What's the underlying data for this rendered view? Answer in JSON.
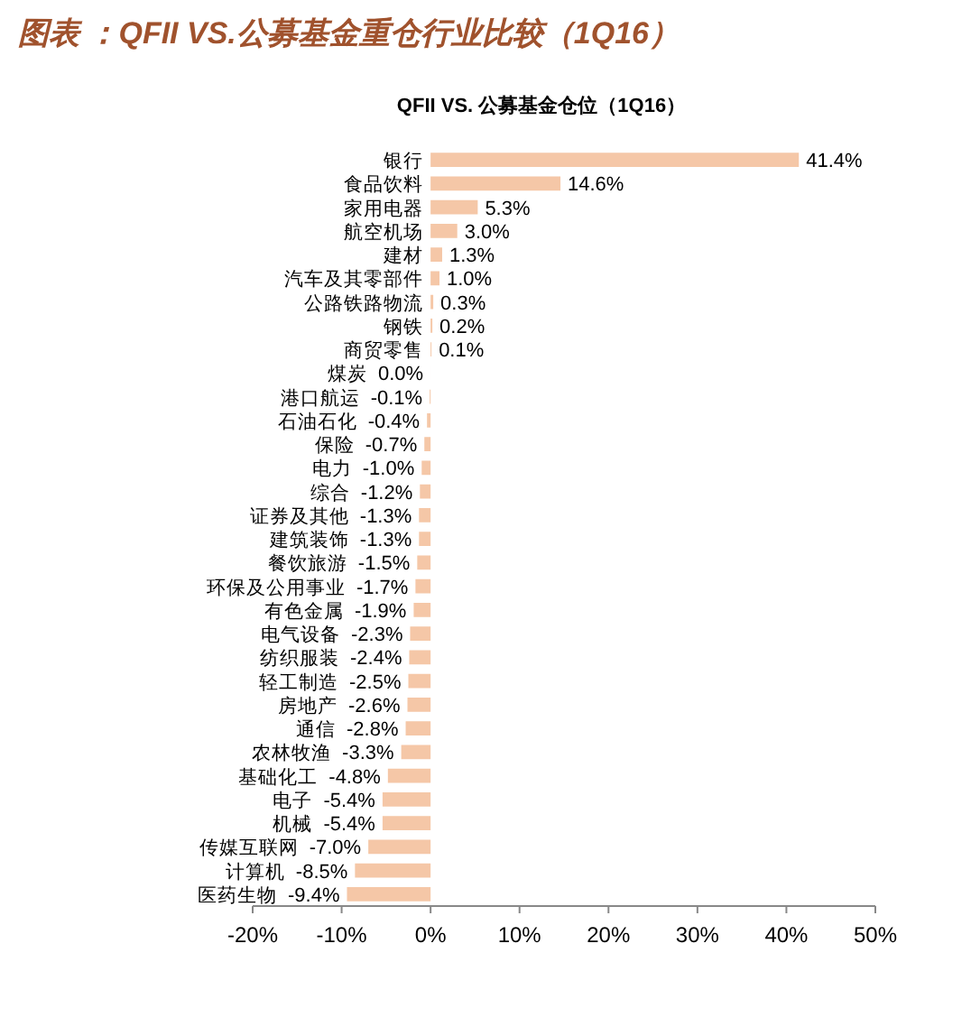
{
  "chart_data": {
    "type": "bar",
    "orientation": "horizontal",
    "title": "图表 ：QFII VS.公募基金重仓行业比较（1Q16）",
    "subtitle": "QFII VS. 公募基金仓位（1Q16）",
    "categories": [
      "银行",
      "食品饮料",
      "家用电器",
      "航空机场",
      "建材",
      "汽车及其零部件",
      "公路铁路物流",
      "钢铁",
      "商贸零售",
      "煤炭",
      "港口航运",
      "石油石化",
      "保险",
      "电力",
      "综合",
      "证券及其他",
      "建筑装饰",
      "餐饮旅游",
      "环保及公用事业",
      "有色金属",
      "电气设备",
      "纺织服装",
      "轻工制造",
      "房地产",
      "通信",
      "农林牧渔",
      "基础化工",
      "电子",
      "机械",
      "传媒互联网",
      "计算机",
      "医药生物"
    ],
    "values": [
      41.4,
      14.6,
      5.3,
      3.0,
      1.3,
      1.0,
      0.3,
      0.2,
      0.1,
      0.0,
      -0.1,
      -0.4,
      -0.7,
      -1.0,
      -1.2,
      -1.3,
      -1.3,
      -1.5,
      -1.7,
      -1.9,
      -2.3,
      -2.4,
      -2.5,
      -2.6,
      -2.8,
      -3.3,
      -4.8,
      -5.4,
      -5.4,
      -7.0,
      -8.5,
      -9.4
    ],
    "value_labels": [
      "41.4%",
      "14.6%",
      "5.3%",
      "3.0%",
      "1.3%",
      "1.0%",
      "0.3%",
      "0.2%",
      "0.1%",
      "0.0%",
      "-0.1%",
      "-0.4%",
      "-0.7%",
      "-1.0%",
      "-1.2%",
      "-1.3%",
      "-1.3%",
      "-1.5%",
      "-1.7%",
      "-1.9%",
      "-2.3%",
      "-2.4%",
      "-2.5%",
      "-2.6%",
      "-2.8%",
      "-3.3%",
      "-4.8%",
      "-5.4%",
      "-5.4%",
      "-7.0%",
      "-8.5%",
      "-9.4%"
    ],
    "color": "#f5c7a7",
    "xlim": [
      -20,
      50
    ],
    "xticks": [
      {
        "value": -20,
        "label": "-20%"
      },
      {
        "value": -10,
        "label": "-10%"
      },
      {
        "value": 0,
        "label": "0%"
      },
      {
        "value": 10,
        "label": "10%"
      },
      {
        "value": 20,
        "label": "20%"
      },
      {
        "value": 30,
        "label": "30%"
      },
      {
        "value": 40,
        "label": "40%"
      },
      {
        "value": 50,
        "label": "50%"
      }
    ],
    "grid": false
  }
}
